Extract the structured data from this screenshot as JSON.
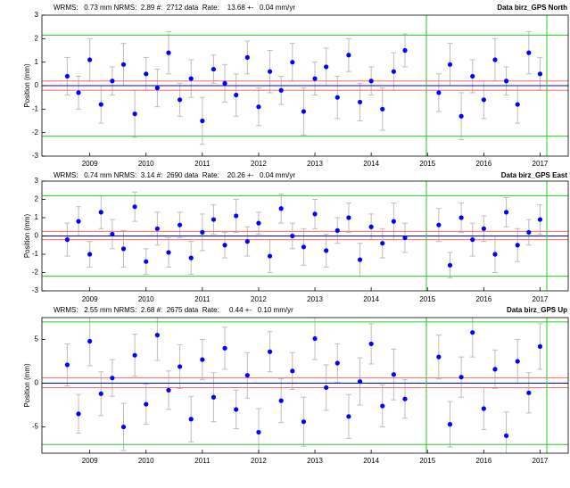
{
  "chart_data": [
    {
      "type": "scatter",
      "title": "WRMS:   0.73 mm NRMS:  2.89 #:  2712 data  Rate:    13.68 +-   0.04 mm/yr",
      "subtitle": "Data birz_GPS North",
      "y_label": "Position (mm)",
      "xlim": [
        2008.15,
        2017.5
      ],
      "xticks": [
        2009,
        2010,
        2011,
        2012,
        2013,
        2014,
        2015,
        2016,
        2017
      ],
      "ylim": [
        -3,
        3
      ],
      "yticks": [
        -3,
        -2,
        -1,
        0,
        1,
        2,
        3
      ],
      "color": "#0000ff",
      "error_color": "#bdbdbd",
      "hlines": [
        {
          "value": 2.15,
          "color": "#22cc22"
        },
        {
          "value": -2.15,
          "color": "#22cc22"
        },
        {
          "value": 0.2,
          "color": "#ff6a6a"
        },
        {
          "value": -0.2,
          "color": "#ff6a6a"
        },
        {
          "value": 0,
          "color": "#0000ff"
        }
      ],
      "vlines": [
        {
          "value": 2014.98,
          "color": "#22cc22"
        },
        {
          "value": 2017.12,
          "color": "#22cc22"
        }
      ],
      "x": [
        2008.6,
        2008.8,
        2009.0,
        2009.2,
        2009.4,
        2009.6,
        2009.8,
        2010.0,
        2010.2,
        2010.4,
        2010.6,
        2010.8,
        2011.0,
        2011.2,
        2011.4,
        2011.6,
        2011.8,
        2012.0,
        2012.2,
        2012.4,
        2012.6,
        2012.8,
        2013.0,
        2013.2,
        2013.4,
        2013.6,
        2013.8,
        2014.0,
        2014.2,
        2014.4,
        2014.6,
        2015.2,
        2015.4,
        2015.6,
        2015.8,
        2016.0,
        2016.2,
        2016.4,
        2016.6,
        2016.8,
        2017.0
      ],
      "values": [
        0.4,
        -0.3,
        1.1,
        -0.8,
        0.2,
        0.9,
        -1.2,
        0.5,
        -0.1,
        1.4,
        -0.6,
        0.3,
        -1.5,
        0.7,
        0.1,
        -0.4,
        1.2,
        -0.9,
        0.6,
        -0.2,
        1.0,
        -1.1,
        0.3,
        0.8,
        -0.5,
        1.3,
        -0.7,
        0.2,
        -1.0,
        0.6,
        1.5,
        -0.3,
        0.9,
        -1.3,
        0.4,
        -0.6,
        1.1,
        0.2,
        -0.8,
        1.4,
        0.5
      ],
      "errors": [
        0.8,
        0.7,
        0.9,
        0.8,
        0.6,
        0.9,
        1.0,
        0.7,
        0.8,
        0.9,
        0.7,
        0.8,
        1.0,
        0.6,
        0.8,
        0.9,
        0.7,
        0.8,
        0.9,
        0.6,
        0.8,
        1.0,
        0.7,
        0.8,
        0.9,
        0.7,
        0.8,
        0.6,
        0.9,
        0.8,
        0.7,
        0.8,
        0.9,
        1.0,
        0.7,
        0.8,
        0.9,
        0.6,
        0.8,
        0.9,
        0.7
      ]
    },
    {
      "type": "scatter",
      "title": "WRMS:   0.74 mm NRMS:  3.14 #:  2690 data  Rate:    20.26 +-   0.04 mm/yr",
      "subtitle": "Data birz_GPS East",
      "y_label": "Position (mm)",
      "xlim": [
        2008.15,
        2017.5
      ],
      "xticks": [
        2009,
        2010,
        2011,
        2012,
        2013,
        2014,
        2015,
        2016,
        2017
      ],
      "ylim": [
        -3,
        3
      ],
      "yticks": [
        -3,
        -2,
        -1,
        0,
        1,
        2,
        3
      ],
      "color": "#0000ff",
      "error_color": "#bdbdbd",
      "hlines": [
        {
          "value": 2.2,
          "color": "#22cc22"
        },
        {
          "value": -2.2,
          "color": "#22cc22"
        },
        {
          "value": 0.25,
          "color": "#ff6a6a"
        },
        {
          "value": -0.2,
          "color": "#ff6a6a"
        },
        {
          "value": 0,
          "color": "#0000ff"
        }
      ],
      "vlines": [
        {
          "value": 2014.98,
          "color": "#22cc22"
        },
        {
          "value": 2017.12,
          "color": "#22cc22"
        }
      ],
      "x": [
        2008.6,
        2008.8,
        2009.0,
        2009.2,
        2009.4,
        2009.6,
        2009.8,
        2010.0,
        2010.2,
        2010.4,
        2010.6,
        2010.8,
        2011.0,
        2011.2,
        2011.4,
        2011.6,
        2011.8,
        2012.0,
        2012.2,
        2012.4,
        2012.6,
        2012.8,
        2013.0,
        2013.2,
        2013.4,
        2013.6,
        2013.8,
        2014.0,
        2014.2,
        2014.4,
        2014.6,
        2015.2,
        2015.4,
        2015.6,
        2015.8,
        2016.0,
        2016.2,
        2016.4,
        2016.6,
        2016.8,
        2017.0
      ],
      "values": [
        -0.2,
        0.8,
        -1.0,
        1.3,
        0.1,
        -0.7,
        1.6,
        -1.4,
        0.4,
        -0.9,
        0.6,
        -1.2,
        0.2,
        0.9,
        -0.5,
        1.1,
        -0.3,
        0.7,
        -1.1,
        1.5,
        0.0,
        -0.6,
        1.2,
        -0.8,
        0.3,
        1.0,
        -1.3,
        0.5,
        -0.4,
        0.8,
        -0.1,
        0.6,
        -1.6,
        1.0,
        -0.2,
        0.4,
        -1.0,
        1.3,
        -0.5,
        0.2,
        0.9
      ],
      "errors": [
        0.9,
        0.8,
        0.7,
        0.9,
        0.8,
        1.0,
        0.8,
        0.7,
        0.9,
        0.8,
        0.7,
        0.9,
        1.0,
        0.8,
        0.7,
        0.9,
        0.8,
        0.6,
        0.9,
        0.8,
        0.7,
        1.0,
        0.8,
        0.9,
        0.7,
        0.8,
        0.9,
        0.7,
        0.8,
        1.0,
        0.8,
        0.9,
        0.7,
        0.8,
        0.9,
        0.7,
        1.0,
        0.8,
        0.9,
        0.7,
        0.8
      ]
    },
    {
      "type": "scatter",
      "title": "WRMS:   2.55 mm NRMS:  2.68 #:  2675 data  Rate:     0.44 +-   0.10 mm/yr",
      "subtitle": "Data birz_GPS Up",
      "y_label": "Position (mm)",
      "xlim": [
        2008.15,
        2017.5
      ],
      "xticks": [
        2009,
        2010,
        2011,
        2012,
        2013,
        2014,
        2015,
        2016,
        2017
      ],
      "ylim": [
        -8,
        7.5
      ],
      "yticks": [
        -5,
        0,
        5
      ],
      "color": "#0000ff",
      "error_color": "#bdbdbd",
      "hlines": [
        {
          "value": 7,
          "color": "#22cc22"
        },
        {
          "value": -7,
          "color": "#22cc22"
        },
        {
          "value": 0.6,
          "color": "#ff6a6a"
        },
        {
          "value": -0.5,
          "color": "#ff6a6a"
        },
        {
          "value": 0,
          "color": "#0000ff"
        }
      ],
      "vlines": [
        {
          "value": 2014.98,
          "color": "#22cc22"
        },
        {
          "value": 2017.12,
          "color": "#22cc22"
        }
      ],
      "x": [
        2008.6,
        2008.8,
        2009.0,
        2009.2,
        2009.4,
        2009.6,
        2009.8,
        2010.0,
        2010.2,
        2010.4,
        2010.6,
        2010.8,
        2011.0,
        2011.2,
        2011.4,
        2011.6,
        2011.8,
        2012.0,
        2012.2,
        2012.4,
        2012.6,
        2012.8,
        2013.0,
        2013.2,
        2013.4,
        2013.6,
        2013.8,
        2014.0,
        2014.2,
        2014.4,
        2014.6,
        2015.2,
        2015.4,
        2015.6,
        2015.8,
        2016.0,
        2016.2,
        2016.4,
        2016.6,
        2016.8,
        2017.0
      ],
      "values": [
        2.1,
        -3.5,
        4.8,
        -1.2,
        0.6,
        -5.0,
        3.2,
        -2.4,
        5.5,
        -0.8,
        1.9,
        -4.1,
        2.7,
        -1.6,
        4.0,
        -3.0,
        0.9,
        -5.6,
        3.6,
        -2.0,
        1.4,
        -4.4,
        5.1,
        -0.5,
        2.3,
        -3.8,
        0.2,
        4.5,
        -2.6,
        1.0,
        -1.8,
        3.0,
        -4.7,
        0.7,
        5.8,
        -2.9,
        1.6,
        -6.0,
        2.5,
        -1.1,
        4.2
      ],
      "errors": [
        2.4,
        2.2,
        2.8,
        2.5,
        2.1,
        2.7,
        2.4,
        2.3,
        2.9,
        2.2,
        2.5,
        2.6,
        2.3,
        2.8,
        2.4,
        2.2,
        2.6,
        2.7,
        2.3,
        2.5,
        2.1,
        2.8,
        2.4,
        2.6,
        2.2,
        2.5,
        2.7,
        2.3,
        2.4,
        2.9,
        2.2,
        2.5,
        2.6,
        2.3,
        2.8,
        2.4,
        2.2,
        2.7,
        2.5,
        2.3,
        2.6
      ]
    }
  ]
}
